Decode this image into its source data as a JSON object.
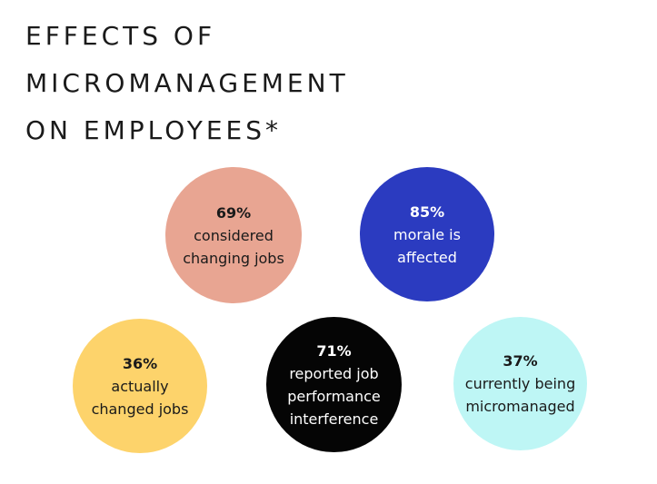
{
  "title": {
    "line1": "EFFECTS OF",
    "line2": "MICROMANAGEMENT",
    "line3": "ON EMPLOYEES*"
  },
  "stats": [
    {
      "value": "69%",
      "line1": "considered",
      "line2": "changing jobs",
      "line3": "",
      "color": "#E8A592"
    },
    {
      "value": "85%",
      "line1": "morale is",
      "line2": "affected",
      "line3": "",
      "color": "#2B3BC0"
    },
    {
      "value": "36%",
      "line1": "actually",
      "line2": "changed jobs",
      "line3": "",
      "color": "#FDD36B"
    },
    {
      "value": "71%",
      "line1": "reported job",
      "line2": "performance",
      "line3": "interference",
      "color": "#050505"
    },
    {
      "value": "37%",
      "line1": "currently being",
      "line2": "micromanaged",
      "line3": "",
      "color": "#BEF6F5"
    }
  ]
}
